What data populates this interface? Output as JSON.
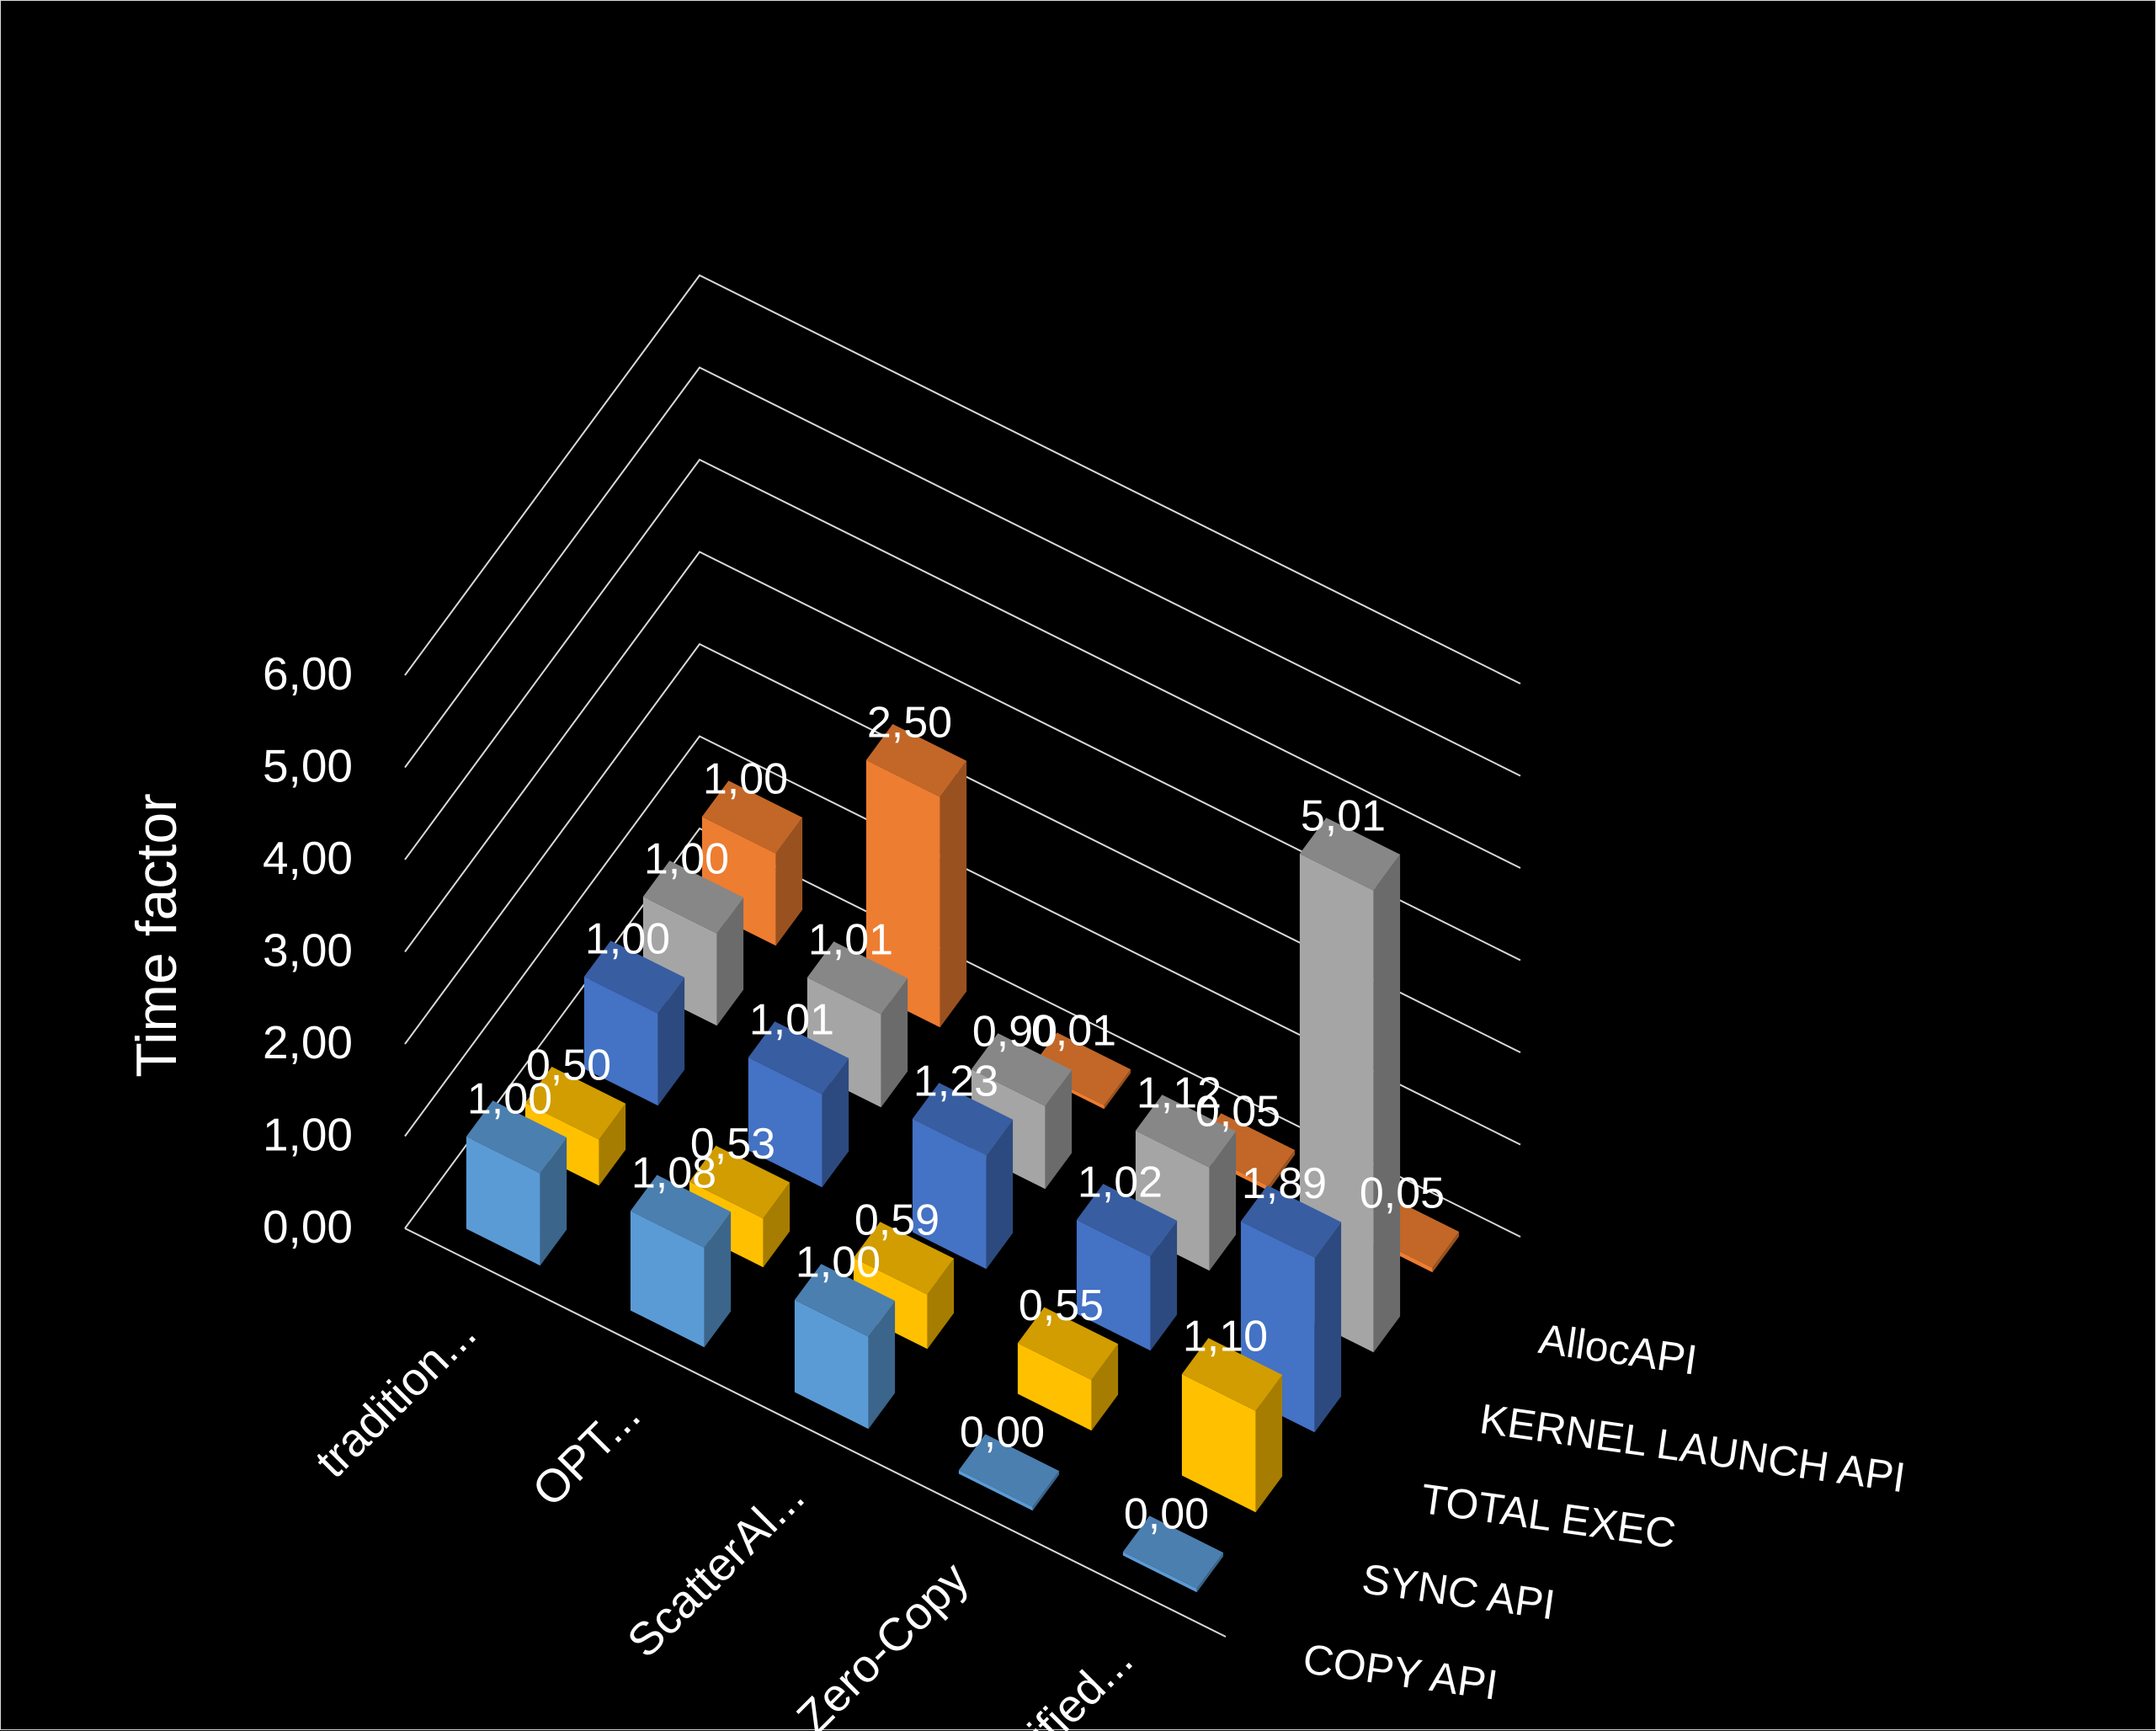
{
  "chart_data": {
    "type": "bar",
    "subtype": "3d-column",
    "title": "",
    "xlabel": "",
    "ylabel": "Time factor",
    "ylim": [
      0,
      6
    ],
    "y_ticks": [
      "0,00",
      "1,00",
      "2,00",
      "3,00",
      "4,00",
      "5,00",
      "6,00"
    ],
    "grid": true,
    "legend": "none (series labelled on depth axis, right side)",
    "categories": [
      "tradition...",
      "OPT...",
      "ScatterAl...",
      "Zero-Copy",
      "Unified..."
    ],
    "series": [
      {
        "name": "COPY API",
        "color": "#5b9bd5",
        "values": [
          1.0,
          1.08,
          1.0,
          0.0,
          0.0
        ],
        "labels": [
          "1,00",
          "1,08",
          "1,00",
          "0,00",
          "0,00"
        ]
      },
      {
        "name": "SYNC API",
        "color": "#ffc000",
        "values": [
          0.5,
          0.53,
          0.59,
          0.55,
          1.1
        ],
        "labels": [
          "0,50",
          "0,53",
          "0,59",
          "0,55",
          "1,10"
        ]
      },
      {
        "name": "TOTAL EXEC",
        "color": "#4472c4",
        "values": [
          1.0,
          1.01,
          1.23,
          1.02,
          1.89
        ],
        "labels": [
          "1,00",
          "1,01",
          "1,23",
          "1,02",
          "1,89"
        ]
      },
      {
        "name": "KERNEL LAUNCH API",
        "color": "#a5a5a5",
        "values": [
          1.0,
          1.01,
          0.9,
          1.12,
          5.01
        ],
        "labels": [
          "1,00",
          "1,01",
          "0,90",
          "1,12",
          "5,01"
        ]
      },
      {
        "name": "AllocAPI",
        "color": "#ed7d31",
        "values": [
          1.0,
          2.5,
          0.01,
          0.05,
          0.05
        ],
        "labels": [
          "1,00",
          "2,50",
          "0,01",
          "0,05",
          "0,05"
        ]
      }
    ]
  }
}
